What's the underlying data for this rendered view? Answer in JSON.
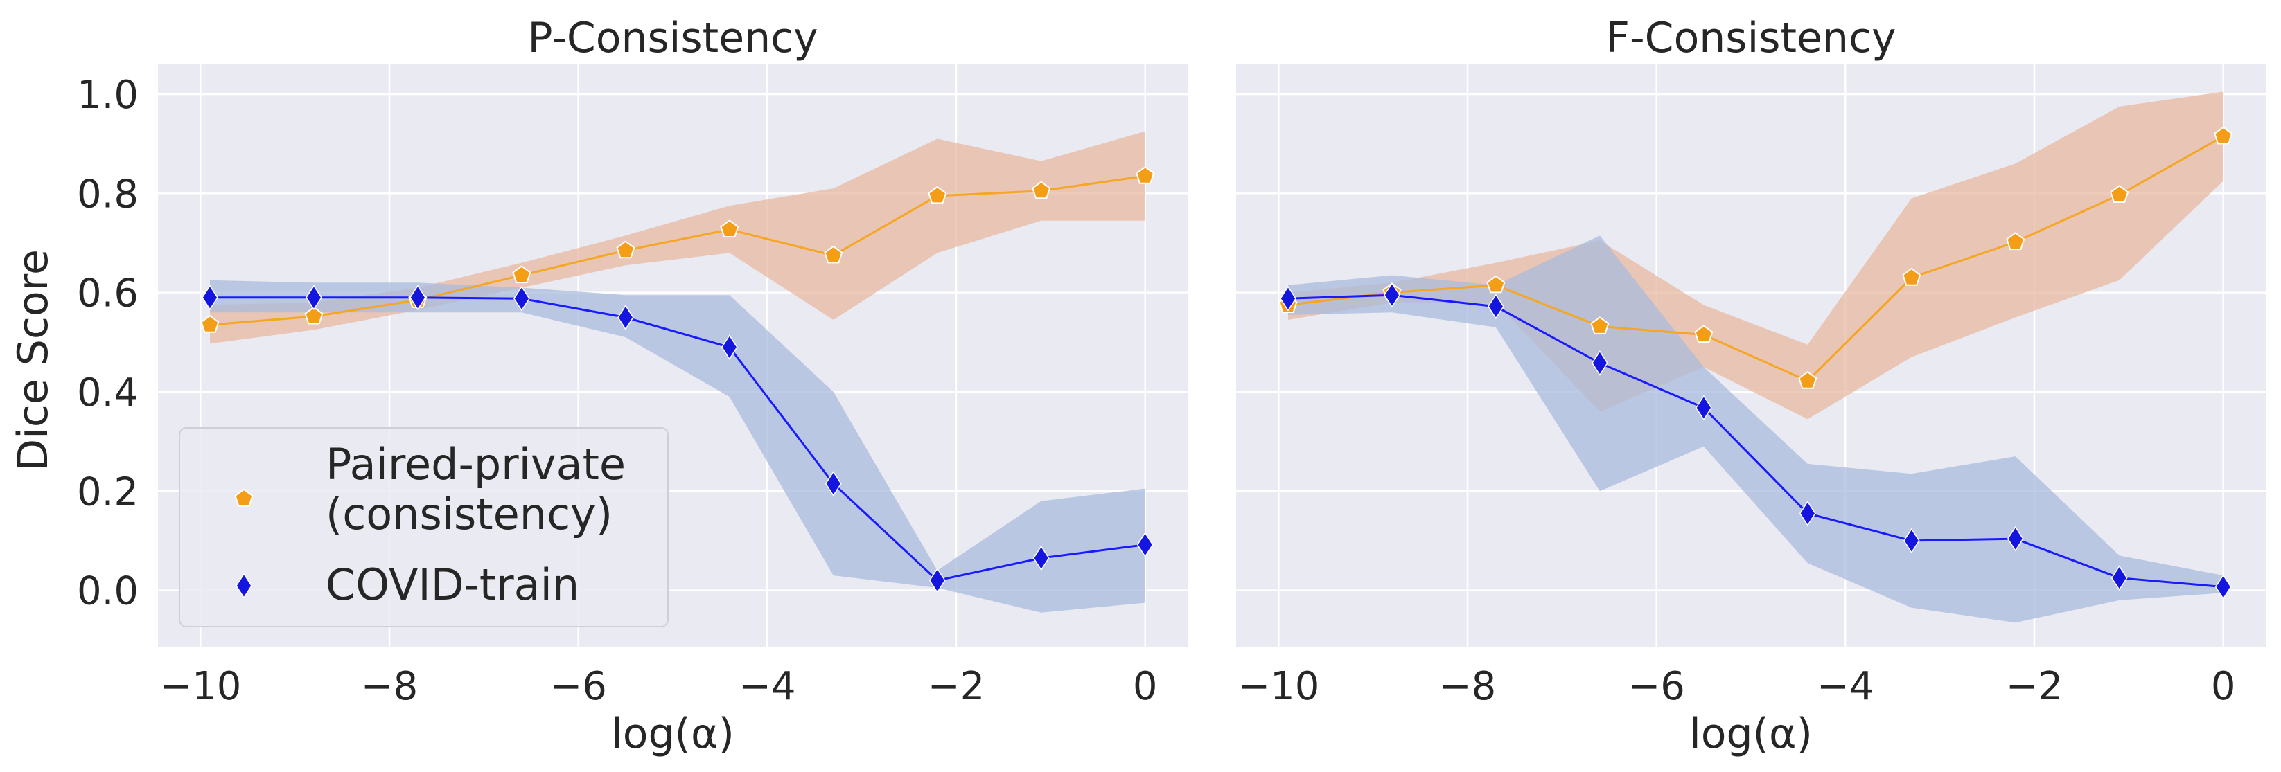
{
  "figure": {
    "shared_ylabel": "Dice Score",
    "legend": {
      "placement": "lower-left of left panel",
      "entries": [
        {
          "series": "paired",
          "lines": [
            "Paired-private",
            "(consistency)"
          ],
          "marker": "pentagon"
        },
        {
          "series": "covid",
          "lines": [
            "COVID-train"
          ],
          "marker": "diamond"
        }
      ]
    }
  },
  "colors": {
    "background": "#eaeaf2",
    "grid": "#ffffff",
    "paired_line": "#f5a623",
    "paired_marker": "#f49d16",
    "paired_band": "#e8b8a0",
    "covid_line": "#1a1aff",
    "covid_marker": "#1515e0",
    "covid_band": "#a9bbdc"
  },
  "chart_data": [
    {
      "type": "line",
      "title": "P-Consistency",
      "xlabel": "log(α)",
      "ylabel": "Dice Score",
      "xlim": [
        -10.45,
        0.45
      ],
      "ylim": [
        -0.115,
        1.06
      ],
      "xticks": [
        -10,
        -8,
        -6,
        -4,
        -2,
        0
      ],
      "xtick_labels": [
        "−10",
        "−8",
        "−6",
        "−4",
        "−2",
        "0"
      ],
      "yticks": [
        0.0,
        0.2,
        0.4,
        0.6,
        0.8,
        1.0
      ],
      "ytick_labels": [
        "0.0",
        "0.2",
        "0.4",
        "0.6",
        "0.8",
        "1.0"
      ],
      "grid": true,
      "x": [
        -9.9,
        -8.8,
        -7.7,
        -6.6,
        -5.5,
        -4.4,
        -3.3,
        -2.2,
        -1.1,
        0.0
      ],
      "series": [
        {
          "name": "Paired-private (consistency)",
          "key": "paired",
          "values": [
            0.535,
            0.552,
            0.585,
            0.635,
            0.685,
            0.727,
            0.675,
            0.795,
            0.805,
            0.835
          ],
          "lower": [
            0.497,
            0.525,
            0.565,
            0.61,
            0.655,
            0.68,
            0.545,
            0.68,
            0.745,
            0.745
          ],
          "upper": [
            0.575,
            0.58,
            0.61,
            0.66,
            0.715,
            0.775,
            0.81,
            0.91,
            0.865,
            0.925
          ]
        },
        {
          "name": "COVID-train",
          "key": "covid",
          "values": [
            0.59,
            0.59,
            0.59,
            0.588,
            0.55,
            0.49,
            0.215,
            0.02,
            0.065,
            0.092
          ],
          "lower": [
            0.56,
            0.56,
            0.56,
            0.56,
            0.51,
            0.39,
            0.03,
            0.005,
            -0.045,
            -0.025
          ],
          "upper": [
            0.625,
            0.62,
            0.62,
            0.61,
            0.595,
            0.595,
            0.4,
            0.04,
            0.18,
            0.205
          ]
        }
      ]
    },
    {
      "type": "line",
      "title": "F-Consistency",
      "xlabel": "log(α)",
      "ylabel": "",
      "xlim": [
        -10.45,
        0.45
      ],
      "ylim": [
        -0.115,
        1.06
      ],
      "xticks": [
        -10,
        -8,
        -6,
        -4,
        -2,
        0
      ],
      "xtick_labels": [
        "−10",
        "−8",
        "−6",
        "−4",
        "−2",
        "0"
      ],
      "yticks": [
        0.0,
        0.2,
        0.4,
        0.6,
        0.8,
        1.0
      ],
      "ytick_labels": [
        "",
        "",
        "",
        "",
        "",
        ""
      ],
      "grid": true,
      "x": [
        -9.9,
        -8.8,
        -7.7,
        -6.6,
        -5.5,
        -4.4,
        -3.3,
        -2.2,
        -1.1,
        0.0
      ],
      "series": [
        {
          "name": "Paired-private (consistency)",
          "key": "paired",
          "values": [
            0.575,
            0.6,
            0.615,
            0.532,
            0.515,
            0.422,
            0.63,
            0.702,
            0.797,
            0.915
          ],
          "lower": [
            0.545,
            0.58,
            0.58,
            0.36,
            0.45,
            0.345,
            0.47,
            0.55,
            0.625,
            0.825
          ],
          "upper": [
            0.6,
            0.62,
            0.66,
            0.705,
            0.575,
            0.495,
            0.79,
            0.86,
            0.975,
            1.005
          ]
        },
        {
          "name": "COVID-train",
          "key": "covid",
          "values": [
            0.588,
            0.595,
            0.572,
            0.458,
            0.368,
            0.155,
            0.1,
            0.104,
            0.025,
            0.007
          ],
          "lower": [
            0.555,
            0.56,
            0.53,
            0.2,
            0.29,
            0.055,
            -0.035,
            -0.065,
            -0.02,
            -0.005
          ],
          "upper": [
            0.615,
            0.635,
            0.615,
            0.715,
            0.45,
            0.255,
            0.235,
            0.27,
            0.07,
            0.03
          ]
        }
      ]
    }
  ]
}
